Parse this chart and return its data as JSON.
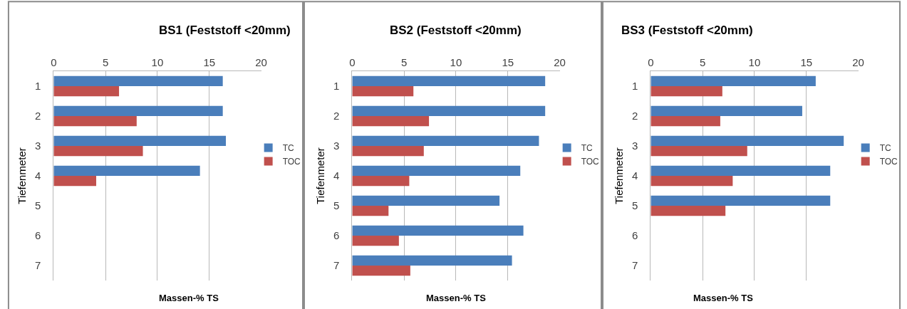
{
  "chart_data": [
    {
      "type": "bar",
      "orientation": "horizontal",
      "title": "BS1 (Feststoff <20mm)",
      "xlabel": "Massen-% TS",
      "ylabel": "Tiefenmeter",
      "categories": [
        "1",
        "2",
        "3",
        "4",
        "5",
        "6",
        "7"
      ],
      "series": [
        {
          "name": "TC",
          "color": "#4a7ebb",
          "values": [
            16.3,
            16.3,
            16.6,
            14.1,
            null,
            null,
            null
          ]
        },
        {
          "name": "TOC",
          "color": "#c0504d",
          "values": [
            6.3,
            8.0,
            8.6,
            4.1,
            null,
            null,
            null
          ]
        }
      ],
      "xlim": [
        0,
        20
      ],
      "xticks": [
        0,
        5,
        10,
        15,
        20
      ],
      "grid": "x",
      "legend": "right"
    },
    {
      "type": "bar",
      "orientation": "horizontal",
      "title": "BS2 (Feststoff <20mm)",
      "xlabel": "Massen-% TS",
      "ylabel": "Tiefenmeter",
      "categories": [
        "1",
        "2",
        "3",
        "4",
        "5",
        "6",
        "7"
      ],
      "series": [
        {
          "name": "TC",
          "color": "#4a7ebb",
          "values": [
            18.6,
            18.6,
            18.0,
            16.2,
            14.2,
            16.5,
            15.4
          ]
        },
        {
          "name": "TOC",
          "color": "#c0504d",
          "values": [
            5.9,
            7.4,
            6.9,
            5.5,
            3.5,
            4.5,
            5.6
          ]
        }
      ],
      "xlim": [
        0,
        20
      ],
      "xticks": [
        0,
        5,
        10,
        15,
        20
      ],
      "grid": "x",
      "legend": "right"
    },
    {
      "type": "bar",
      "orientation": "horizontal",
      "title": "BS3 (Feststoff <20mm)",
      "xlabel": "Massen-% TS",
      "ylabel": "Tiefenmeter",
      "categories": [
        "1",
        "2",
        "3",
        "4",
        "5",
        "6",
        "7"
      ],
      "series": [
        {
          "name": "TC",
          "color": "#4a7ebb",
          "values": [
            15.9,
            14.6,
            18.6,
            17.3,
            17.3,
            null,
            null
          ]
        },
        {
          "name": "TOC",
          "color": "#c0504d",
          "values": [
            6.9,
            6.7,
            9.3,
            7.9,
            7.2,
            null,
            null
          ]
        }
      ],
      "xlim": [
        0,
        20
      ],
      "xticks": [
        0,
        5,
        10,
        15,
        20
      ],
      "grid": "x",
      "legend": "right"
    }
  ]
}
